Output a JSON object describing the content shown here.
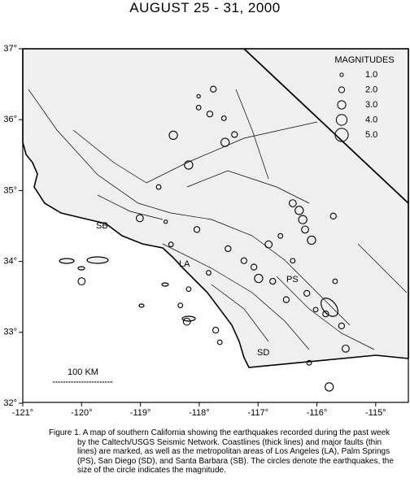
{
  "map": {
    "title": "AUGUST 25 - 31, 2000",
    "lon_ticks": [
      {
        "value": -121,
        "label": "-121°"
      },
      {
        "value": -120,
        "label": "-120°"
      },
      {
        "value": -119,
        "label": "-119°"
      },
      {
        "value": -118,
        "label": "-118°"
      },
      {
        "value": -117,
        "label": "-117°"
      },
      {
        "value": -116,
        "label": "-116°"
      },
      {
        "value": -115,
        "label": "-115°"
      }
    ],
    "lat_ticks": [
      {
        "value": 37,
        "label": "37°"
      },
      {
        "value": 36,
        "label": "36°"
      },
      {
        "value": 35,
        "label": "35°"
      },
      {
        "value": 34,
        "label": "34°"
      },
      {
        "value": 33,
        "label": "33°"
      },
      {
        "value": 32,
        "label": "32°"
      }
    ],
    "legend": {
      "title": "MAGNITUDES",
      "entries": [
        {
          "value": 1,
          "label": "1.0"
        },
        {
          "value": 2,
          "label": "2.0"
        },
        {
          "value": 3,
          "label": "3.0"
        },
        {
          "value": 4,
          "label": "4.0"
        },
        {
          "value": 5,
          "label": "5.0"
        }
      ]
    },
    "cities": [
      "SB",
      "LA",
      "PS",
      "SD"
    ],
    "scale_label": "100 KM",
    "quakes": [
      {
        "lon": -117.76,
        "lat": 36.43,
        "mag": 2
      },
      {
        "lon": -118.01,
        "lat": 36.33,
        "mag": 1
      },
      {
        "lon": -118.01,
        "lat": 36.17,
        "mag": 1.5
      },
      {
        "lon": -117.82,
        "lat": 36.08,
        "mag": 2
      },
      {
        "lon": -117.58,
        "lat": 36.02,
        "mag": 1.5
      },
      {
        "lon": -118.44,
        "lat": 35.78,
        "mag": 3
      },
      {
        "lon": -117.56,
        "lat": 35.68,
        "mag": 3
      },
      {
        "lon": -117.4,
        "lat": 35.79,
        "mag": 2
      },
      {
        "lon": -118.18,
        "lat": 35.36,
        "mag": 3
      },
      {
        "lon": -118.69,
        "lat": 35.05,
        "mag": 1.5
      },
      {
        "lon": -119.01,
        "lat": 34.61,
        "mag": 2.5
      },
      {
        "lon": -118.57,
        "lat": 34.56,
        "mag": 1
      },
      {
        "lon": -118.04,
        "lat": 34.45,
        "mag": 2
      },
      {
        "lon": -118.48,
        "lat": 34.24,
        "mag": 1.5
      },
      {
        "lon": -117.51,
        "lat": 34.18,
        "mag": 2
      },
      {
        "lon": -117.24,
        "lat": 34.01,
        "mag": 2
      },
      {
        "lon": -116.99,
        "lat": 33.76,
        "mag": 3
      },
      {
        "lon": -116.82,
        "lat": 34.24,
        "mag": 2.5
      },
      {
        "lon": -116.62,
        "lat": 34.36,
        "mag": 1.5
      },
      {
        "lon": -116.41,
        "lat": 34.82,
        "mag": 2.5
      },
      {
        "lon": -116.3,
        "lat": 34.72,
        "mag": 3
      },
      {
        "lon": -116.24,
        "lat": 34.59,
        "mag": 3
      },
      {
        "lon": -116.2,
        "lat": 34.45,
        "mag": 2.5
      },
      {
        "lon": -116.09,
        "lat": 34.3,
        "mag": 3
      },
      {
        "lon": -115.72,
        "lat": 34.64,
        "mag": 2
      },
      {
        "lon": -116.75,
        "lat": 33.72,
        "mag": 2
      },
      {
        "lon": -116.52,
        "lat": 33.46,
        "mag": 2
      },
      {
        "lon": -116.41,
        "lat": 34.01,
        "mag": 1.5
      },
      {
        "lon": -116.17,
        "lat": 33.55,
        "mag": 2
      },
      {
        "lon": -116.02,
        "lat": 33.32,
        "mag": 1.5
      },
      {
        "lon": -115.85,
        "lat": 33.26,
        "mag": 2
      },
      {
        "lon": -115.69,
        "lat": 33.72,
        "mag": 1.5
      },
      {
        "lon": -115.58,
        "lat": 33.09,
        "mag": 2
      },
      {
        "lon": -117.72,
        "lat": 33.03,
        "mag": 2
      },
      {
        "lon": -118.21,
        "lat": 33.15,
        "mag": 2.5
      },
      {
        "lon": -118.32,
        "lat": 33.38,
        "mag": 1.5
      },
      {
        "lon": -120.0,
        "lat": 33.72,
        "mag": 2.5
      },
      {
        "lon": -115.51,
        "lat": 32.77,
        "mag": 2.5
      },
      {
        "lon": -115.79,
        "lat": 32.23,
        "mag": 3
      },
      {
        "lon": -116.13,
        "lat": 32.57,
        "mag": 1.5
      },
      {
        "lon": -117.65,
        "lat": 32.86,
        "mag": 1.5
      },
      {
        "lon": -118.18,
        "lat": 33.61,
        "mag": 1.5
      },
      {
        "lon": -117.84,
        "lat": 33.84,
        "mag": 1.5
      },
      {
        "lon": -117.07,
        "lat": 33.92,
        "mag": 2
      }
    ]
  },
  "caption": "Figure 1. A map of southern California showing the earthquakes recorded during the past week by the Caltech/USGS Seismic Network.  Coastlines (thick lines) and major faults (thin lines) are marked, as well as the metropolitan areas of Los Angeles (LA), Palm Springs (PS), San Diego (SD), and Santa Barbara (SB).  The circles denote the earthquakes, the size of the circle indicates the magnitude."
}
